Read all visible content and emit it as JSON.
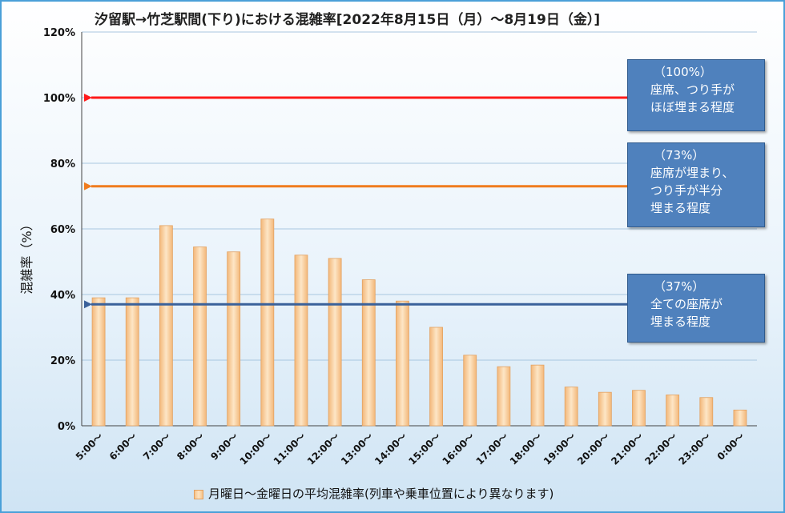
{
  "chart_data": {
    "type": "bar",
    "title": "汐留駅→竹芝駅間(下り)における混雑率[2022年8月15日（月）～8月19日（金）]",
    "ylabel": "混雑率（%）",
    "xlabel": "",
    "ylim": [
      0,
      120
    ],
    "yticks": [
      "0%",
      "20%",
      "40%",
      "60%",
      "80%",
      "100%",
      "120%"
    ],
    "categories": [
      "5:00～",
      "6:00～",
      "7:00～",
      "8:00～",
      "9:00～",
      "10:00～",
      "11:00～",
      "12:00～",
      "13:00～",
      "14:00～",
      "15:00～",
      "16:00～",
      "17:00～",
      "18:00～",
      "19:00～",
      "20:00～",
      "21:00～",
      "22:00～",
      "23:00～",
      "0:00～"
    ],
    "series": [
      {
        "name": "月曜日～金曜日の平均混雑率(列車や乗車位置により異なります)",
        "values": [
          39,
          39,
          61,
          54.5,
          53,
          63,
          52,
          51,
          44.5,
          38,
          30,
          21.5,
          18,
          18.5,
          11.8,
          10.2,
          10.8,
          9.4,
          8.6,
          4.8
        ]
      }
    ],
    "grid": true,
    "legend_position": "bottom",
    "reference_lines": [
      {
        "value": 100,
        "color": "#ff1a1a",
        "label_pct": "（100%）",
        "label_lines": [
          "座席、つり手が",
          "ほぼ埋まる程度"
        ]
      },
      {
        "value": 73,
        "color": "#f07c1e",
        "label_pct": "（73%）",
        "label_lines": [
          "座席が埋まり、",
          "つり手が半分",
          "埋まる程度"
        ]
      },
      {
        "value": 37,
        "color": "#3a619a",
        "label_pct": "（37%）",
        "label_lines": [
          "全ての座席が",
          "埋まる程度"
        ]
      }
    ]
  }
}
